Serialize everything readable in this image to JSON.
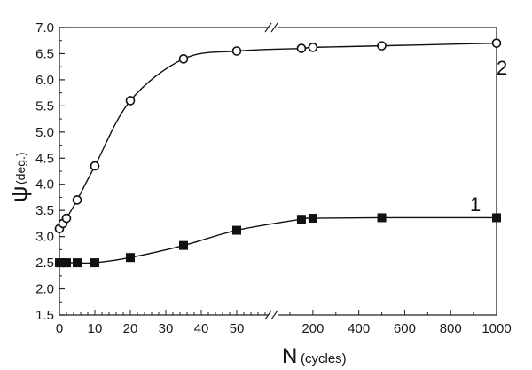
{
  "chart_data": {
    "type": "line",
    "title": "",
    "xlabel": "N",
    "xlabel_unit": "(cycles)",
    "ylabel": "ψ",
    "ylabel_unit": "(deg.)",
    "ylim": [
      1.5,
      7.0
    ],
    "y_ticks": [
      "1.5",
      "2.0",
      "2.5",
      "3.0",
      "3.5",
      "4.0",
      "4.5",
      "5.0",
      "5.5",
      "6.0",
      "6.5",
      "7.0"
    ],
    "x_broken_axis": true,
    "x_left_segment": {
      "range": [
        0,
        60
      ],
      "ticks": [
        "0",
        "10",
        "20",
        "30",
        "40",
        "50"
      ]
    },
    "x_right_segment": {
      "range": [
        100,
        1000
      ],
      "ticks": [
        "200",
        "400",
        "600",
        "800",
        "1000"
      ]
    },
    "grid": false,
    "series": [
      {
        "name": "1",
        "marker": "filled-square",
        "x": [
          0,
          1,
          2,
          5,
          10,
          20,
          35,
          50,
          150,
          200,
          500,
          1000
        ],
        "values": [
          2.5,
          2.5,
          2.5,
          2.5,
          2.5,
          2.6,
          2.83,
          3.12,
          3.33,
          3.35,
          3.36,
          3.36
        ]
      },
      {
        "name": "2",
        "marker": "open-circle",
        "x": [
          0,
          1,
          2,
          5,
          10,
          20,
          35,
          50,
          150,
          200,
          500,
          1000
        ],
        "values": [
          3.15,
          3.25,
          3.35,
          3.7,
          4.35,
          5.6,
          6.4,
          6.55,
          6.6,
          6.62,
          6.65,
          6.7
        ]
      }
    ],
    "annotations": [
      {
        "text": "1",
        "near_series": "1"
      },
      {
        "text": "2",
        "near_series": "2"
      }
    ]
  }
}
